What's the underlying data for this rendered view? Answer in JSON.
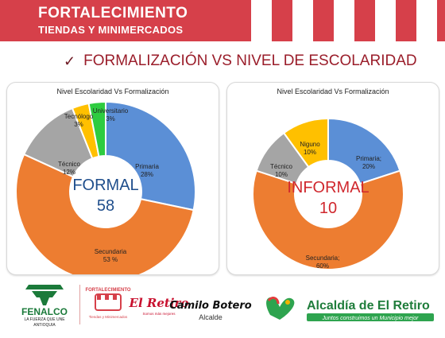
{
  "banner": {
    "title": "FORTALECIMIENTO",
    "subtitle": "TIENDAS Y MINIMERCADOS",
    "color": "#d6404a"
  },
  "heading": {
    "icon": "check-icon",
    "text": "FORMALIZACIÓN VS NIVEL DE ESCOLARIDAD"
  },
  "charts": [
    {
      "title": "Nivel Escolaridad Vs Formalización",
      "center_label": "FORMAL",
      "center_value": "58",
      "center_color": "#1f4e8c"
    },
    {
      "title": "Nivel Escolaridad Vs Formalización",
      "center_label": "INFORMAL",
      "center_value": "10",
      "center_color": "#d0282e"
    }
  ],
  "chart_data": [
    {
      "type": "pie",
      "title": "Nivel Escolaridad Vs Formalización",
      "series": [
        {
          "name": "Primaria",
          "label": "28%",
          "value": 28,
          "color": "#5b8fd6"
        },
        {
          "name": "Secundaria",
          "label": "53 %",
          "value": 53,
          "color": "#ed7d31"
        },
        {
          "name": "Técnico",
          "label": "12%",
          "value": 12,
          "color": "#a5a5a5"
        },
        {
          "name": "Tecnólogo",
          "label": "3%",
          "value": 3,
          "color": "#ffc000"
        },
        {
          "name": "Universitario",
          "label": "3%",
          "value": 3,
          "color": "#2ecc40"
        }
      ]
    },
    {
      "type": "pie",
      "title": "Nivel Escolaridad Vs Formalización",
      "series": [
        {
          "name": "Primaria;",
          "label": "20%",
          "value": 20,
          "color": "#5b8fd6"
        },
        {
          "name": "Secundaria;",
          "label": "60%",
          "value": 60,
          "color": "#ed7d31"
        },
        {
          "name": "Técnico",
          "label": "10%",
          "value": 10,
          "color": "#a5a5a5"
        },
        {
          "name": "Niguno",
          "label": "10%",
          "value": 10,
          "color": "#ffc000"
        }
      ]
    }
  ],
  "footer": {
    "fenalco": "FENALCO",
    "fenalco_tag": "LA FUERZA QUE UNE",
    "fenalco_region": "ANTIOQUIA",
    "fortalecimiento": "FORTALECIMIENTO",
    "fort_sub": "Tiendas y Minimercados",
    "retiro": "El Retiro",
    "retiro_tag": "Somos más mejores",
    "camilo": "Camilo Botero",
    "alcalde": "Alcalde",
    "alcaldia": "Alcaldía de El Retiro",
    "alcaldia_tag": "Juntos construimos un Municipio mejor"
  }
}
